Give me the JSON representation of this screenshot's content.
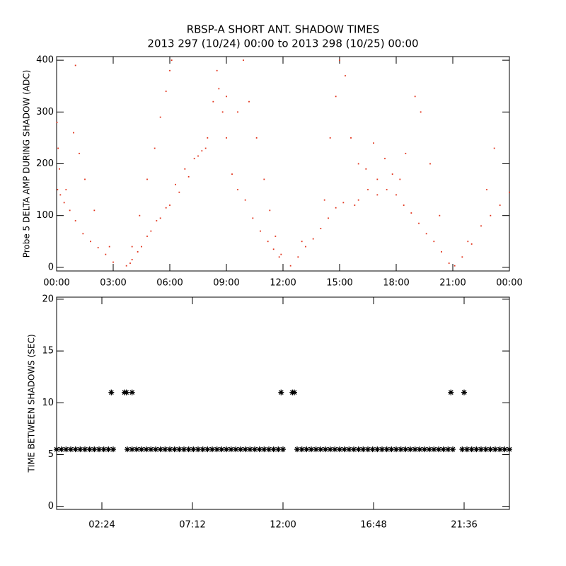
{
  "chart_data": [
    {
      "type": "scatter",
      "title": "RBSP-A SHORT ANT. SHADOW TIMES",
      "subtitle": "2013 297 (10/24) 00:00 to 2013 298 (10/25) 00:00",
      "ylabel": "Probe 5 DELTA AMP DURING SHADOW (ADC)",
      "xlim": [
        0,
        24
      ],
      "xticks": [
        {
          "value": 0,
          "label": "00:00"
        },
        {
          "value": 3,
          "label": "03:00"
        },
        {
          "value": 6,
          "label": "06:00"
        },
        {
          "value": 9,
          "label": "09:00"
        },
        {
          "value": 12,
          "label": "12:00"
        },
        {
          "value": 15,
          "label": "15:00"
        },
        {
          "value": 18,
          "label": "18:00"
        },
        {
          "value": 21,
          "label": "21:00"
        },
        {
          "value": 24,
          "label": "00:00"
        }
      ],
      "ylim": [
        -7,
        407
      ],
      "yticks": [
        0,
        100,
        200,
        300,
        400
      ],
      "marker": "dot",
      "series": [
        {
          "color": "#e2321a",
          "x": [
            0.05,
            0.2,
            0.4,
            0.7,
            1.0,
            1.4,
            1.8,
            2.2,
            2.6,
            3.0,
            0.02,
            0.08,
            0.15,
            0.5,
            0.9,
            1.0,
            1.2,
            1.5,
            2.0,
            2.8,
            3.7,
            4.0,
            4.5,
            5.0,
            5.5,
            6.0,
            6.5,
            7.0,
            7.5,
            7.9,
            3.9,
            4.3,
            4.8,
            5.3,
            5.8,
            6.3,
            6.8,
            7.3,
            7.7,
            8.0,
            4.0,
            4.4,
            4.8,
            5.2,
            5.5,
            5.8,
            6.0,
            6.1,
            8.3,
            8.6,
            8.8,
            9.0,
            9.3,
            9.6,
            10.0,
            10.4,
            10.8,
            11.2,
            11.5,
            11.8,
            8.5,
            9.0,
            9.6,
            9.9,
            10.2,
            10.6,
            11.0,
            11.3,
            11.6,
            11.9,
            12.4,
            12.8,
            13.2,
            13.6,
            14.0,
            14.4,
            14.8,
            15.2,
            13.0,
            14.2,
            14.5,
            14.8,
            15.0,
            15.3,
            15.6,
            16.0,
            16.4,
            16.8,
            17.0,
            17.4,
            17.8,
            18.2,
            17.0,
            17.5,
            18.0,
            16.0,
            15.8,
            16.5,
            18.5,
            19.0,
            18.4,
            18.8,
            19.2,
            19.6,
            20.0,
            20.4,
            20.8,
            19.3,
            19.8,
            20.3,
            21.1,
            21.5,
            22.0,
            22.5,
            23.0,
            23.5,
            24.0,
            21.8,
            22.8,
            23.2
          ],
          "values": [
            150,
            140,
            125,
            110,
            90,
            65,
            50,
            38,
            25,
            10,
            280,
            230,
            190,
            150,
            260,
            390,
            220,
            170,
            110,
            40,
            3,
            15,
            40,
            70,
            95,
            120,
            145,
            175,
            215,
            230,
            8,
            30,
            60,
            90,
            115,
            160,
            190,
            210,
            225,
            250,
            40,
            100,
            170,
            230,
            290,
            340,
            380,
            400,
            320,
            345,
            300,
            250,
            180,
            150,
            130,
            95,
            70,
            50,
            35,
            20,
            380,
            330,
            300,
            400,
            320,
            250,
            170,
            110,
            60,
            25,
            3,
            20,
            40,
            55,
            75,
            95,
            115,
            125,
            50,
            130,
            250,
            330,
            400,
            370,
            250,
            200,
            190,
            240,
            170,
            210,
            180,
            170,
            140,
            150,
            140,
            130,
            120,
            150,
            220,
            330,
            120,
            105,
            85,
            65,
            50,
            30,
            8,
            300,
            200,
            100,
            3,
            20,
            45,
            80,
            100,
            120,
            145,
            50,
            150,
            230
          ]
        }
      ]
    },
    {
      "type": "scatter",
      "ylabel": "TIME BETWEEN SHADOWS (SEC)",
      "xlim": [
        0,
        24
      ],
      "xticks": [
        {
          "value": 2.4,
          "label": "02:24"
        },
        {
          "value": 7.2,
          "label": "07:12"
        },
        {
          "value": 12,
          "label": "12:00"
        },
        {
          "value": 16.8,
          "label": "16:48"
        },
        {
          "value": 21.6,
          "label": "21:36"
        }
      ],
      "ylim": [
        -0.3,
        20.2
      ],
      "yticks": [
        0,
        5,
        10,
        15,
        20
      ],
      "marker": "asterisk",
      "series": [
        {
          "color": "#000000",
          "x": [
            0,
            0.25,
            0.5,
            0.75,
            1,
            1.25,
            1.5,
            1.75,
            2,
            2.25,
            2.5,
            2.75,
            3,
            3.75,
            4,
            4.25,
            4.5,
            4.75,
            5,
            5.25,
            5.5,
            5.75,
            6,
            6.25,
            6.5,
            6.75,
            7,
            7.25,
            7.5,
            7.75,
            8,
            8.25,
            8.5,
            8.75,
            9,
            9.25,
            9.5,
            9.75,
            10,
            10.25,
            10.5,
            10.75,
            11,
            11.25,
            11.5,
            11.75,
            12,
            12.75,
            13,
            13.25,
            13.5,
            13.75,
            14,
            14.25,
            14.5,
            14.75,
            15,
            15.25,
            15.5,
            15.75,
            16,
            16.25,
            16.5,
            16.75,
            17,
            17.25,
            17.5,
            17.75,
            18,
            18.25,
            18.5,
            18.75,
            19,
            19.25,
            19.5,
            19.75,
            20,
            20.25,
            20.5,
            20.75,
            21,
            21.5,
            21.75,
            22,
            22.25,
            22.5,
            22.75,
            23,
            23.25,
            23.5,
            23.75,
            24,
            2.9,
            3.6,
            3.7,
            4.0,
            11.9,
            12.5,
            12.6,
            20.9,
            21.6
          ],
          "values": [
            5.5,
            5.5,
            5.5,
            5.5,
            5.5,
            5.5,
            5.5,
            5.5,
            5.5,
            5.5,
            5.5,
            5.5,
            5.5,
            5.5,
            5.5,
            5.5,
            5.5,
            5.5,
            5.5,
            5.5,
            5.5,
            5.5,
            5.5,
            5.5,
            5.5,
            5.5,
            5.5,
            5.5,
            5.5,
            5.5,
            5.5,
            5.5,
            5.5,
            5.5,
            5.5,
            5.5,
            5.5,
            5.5,
            5.5,
            5.5,
            5.5,
            5.5,
            5.5,
            5.5,
            5.5,
            5.5,
            5.5,
            5.5,
            5.5,
            5.5,
            5.5,
            5.5,
            5.5,
            5.5,
            5.5,
            5.5,
            5.5,
            5.5,
            5.5,
            5.5,
            5.5,
            5.5,
            5.5,
            5.5,
            5.5,
            5.5,
            5.5,
            5.5,
            5.5,
            5.5,
            5.5,
            5.5,
            5.5,
            5.5,
            5.5,
            5.5,
            5.5,
            5.5,
            5.5,
            5.5,
            5.5,
            5.5,
            5.5,
            5.5,
            5.5,
            5.5,
            5.5,
            5.5,
            5.5,
            5.5,
            5.5,
            5.5,
            11,
            11,
            11,
            11,
            11,
            11,
            11,
            11,
            11
          ]
        }
      ]
    }
  ]
}
